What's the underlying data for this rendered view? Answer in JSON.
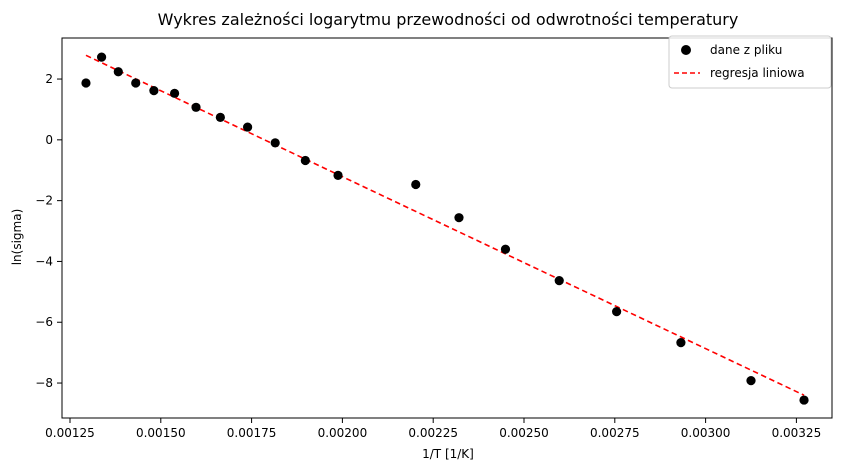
{
  "chart_data": {
    "type": "scatter",
    "title": "Wykres zależności logarytmu przewodności od odwrotności temperatury",
    "xlabel": "1/T [1/K]",
    "ylabel": "ln(sigma)",
    "xlim": [
      0.001228,
      0.003348
    ],
    "ylim": [
      -9.15,
      3.35
    ],
    "xticks": [
      0.00125,
      0.0015,
      0.00175,
      0.002,
      0.00225,
      0.0025,
      0.00275,
      0.003,
      0.00325
    ],
    "xtick_labels": [
      "0.00125",
      "0.00150",
      "0.00175",
      "0.00200",
      "0.00225",
      "0.00250",
      "0.00275",
      "0.00300",
      "0.00325"
    ],
    "yticks": [
      -8,
      -6,
      -4,
      -2,
      0,
      2
    ],
    "ytick_labels": [
      "−8",
      "−6",
      "−4",
      "−2",
      "0",
      "2"
    ],
    "grid": false,
    "legend_position": "top-right",
    "series": [
      {
        "name": "dane z pliku",
        "kind": "scatter",
        "color": "#000000",
        "x": [
          0.001294,
          0.001337,
          0.001383,
          0.001431,
          0.001481,
          0.001538,
          0.001597,
          0.001664,
          0.001739,
          0.001815,
          0.001898,
          0.001988,
          0.002202,
          0.002321,
          0.002449,
          0.002597,
          0.002755,
          0.002932,
          0.003125,
          0.003271
        ],
        "y": [
          1.87,
          2.72,
          2.24,
          1.87,
          1.62,
          1.53,
          1.07,
          0.74,
          0.42,
          -0.1,
          -0.68,
          -1.17,
          -1.47,
          -2.56,
          -3.6,
          -4.63,
          -5.65,
          -6.67,
          -7.92,
          -8.56
        ]
      },
      {
        "name": "regresja liniowa",
        "kind": "line",
        "style": "dashed",
        "color": "#ff0000",
        "x": [
          0.001294,
          0.003271
        ],
        "y": [
          2.78,
          -8.4
        ]
      }
    ]
  }
}
